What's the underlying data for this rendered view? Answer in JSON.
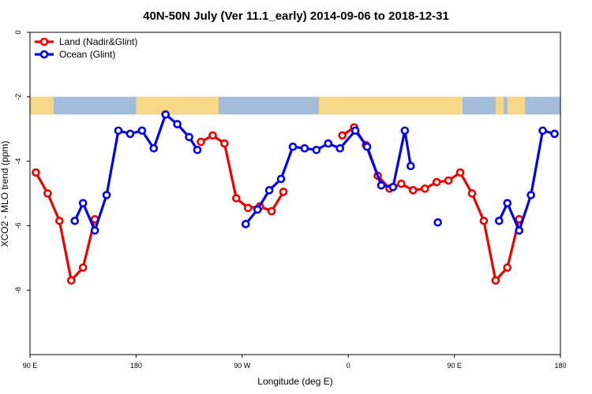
{
  "chart_data": {
    "type": "line",
    "title": "40N-50N July (Ver 11.1_early)   2014-09-06 to 2018-12-31",
    "xlabel": "Longitude (deg E)",
    "ylabel": "XCO2 - MLO trend (ppm)",
    "xlim": [
      90,
      540
    ],
    "ylim": [
      -10,
      0
    ],
    "x_ticks": [
      {
        "value": 90,
        "label": "90 E"
      },
      {
        "value": 180,
        "label": "180"
      },
      {
        "value": 270,
        "label": "90 W"
      },
      {
        "value": 360,
        "label": "0"
      },
      {
        "value": 450,
        "label": "90 E"
      },
      {
        "value": 540,
        "label": "180"
      }
    ],
    "y_ticks": [
      {
        "value": 0,
        "label": "0"
      },
      {
        "value": -2,
        "label": "-2"
      },
      {
        "value": -4,
        "label": "-4"
      },
      {
        "value": -6,
        "label": "-6"
      },
      {
        "value": -8,
        "label": "-8"
      }
    ],
    "legend_position": "top-left",
    "grid": false,
    "map_strip": {
      "y_top": -2.0,
      "y_bottom": -2.55,
      "ocean_color": "#a3bcd9",
      "land_color": "#f5d787"
    },
    "series": [
      {
        "name": "Land (Nadir&Glint)",
        "color": "#ee0000",
        "segments": [
          [
            [
              95,
              -4.35
            ],
            [
              105,
              -5.0
            ],
            [
              115,
              -5.85
            ],
            [
              125,
              -7.7
            ],
            [
              135,
              -7.3
            ],
            [
              145,
              -5.8
            ]
          ],
          [
            [
              235,
              -3.4
            ],
            [
              245,
              -3.2
            ],
            [
              255,
              -3.45
            ],
            [
              265,
              -5.15
            ],
            [
              275,
              -5.45
            ],
            [
              285,
              -5.4
            ],
            [
              295,
              -5.55
            ],
            [
              305,
              -4.95
            ]
          ],
          [
            [
              355,
              -3.2
            ],
            [
              365,
              -2.95
            ],
            [
              375,
              -3.5
            ],
            [
              385,
              -4.45
            ],
            [
              395,
              -4.85
            ],
            [
              405,
              -4.7
            ],
            [
              415,
              -4.9
            ],
            [
              425,
              -4.85
            ],
            [
              435,
              -4.65
            ],
            [
              445,
              -4.6
            ],
            [
              455,
              -4.35
            ],
            [
              465,
              -5.0
            ],
            [
              475,
              -5.85
            ],
            [
              485,
              -7.7
            ],
            [
              495,
              -7.3
            ],
            [
              505,
              -5.8
            ]
          ]
        ]
      },
      {
        "name": "Ocean (Glint)",
        "color": "#0000ee",
        "segments": [
          [
            [
              128,
              -5.85
            ],
            [
              135,
              -5.3
            ],
            [
              145,
              -6.15
            ],
            [
              155,
              -5.05
            ],
            [
              165,
              -3.05
            ],
            [
              175,
              -3.15
            ],
            [
              185,
              -3.05
            ],
            [
              195,
              -3.6
            ],
            [
              205,
              -2.55
            ],
            [
              215,
              -2.85
            ],
            [
              225,
              -3.25
            ],
            [
              232,
              -3.65
            ]
          ],
          [
            [
              273,
              -5.95
            ],
            [
              283,
              -5.5
            ],
            [
              293,
              -4.9
            ],
            [
              303,
              -4.55
            ],
            [
              313,
              -3.55
            ],
            [
              323,
              -3.6
            ],
            [
              333,
              -3.65
            ],
            [
              343,
              -3.45
            ],
            [
              353,
              -3.6
            ],
            [
              366,
              -3.05
            ],
            [
              376,
              -3.55
            ],
            [
              388,
              -4.75
            ],
            [
              398,
              -4.8
            ],
            [
              408,
              -3.05
            ],
            [
              413,
              -4.15
            ]
          ],
          [
            [
              436,
              -5.9
            ]
          ],
          [
            [
              488,
              -5.85
            ],
            [
              495,
              -5.3
            ],
            [
              505,
              -6.15
            ],
            [
              515,
              -5.05
            ],
            [
              525,
              -3.05
            ],
            [
              535,
              -3.15
            ]
          ]
        ]
      }
    ]
  }
}
